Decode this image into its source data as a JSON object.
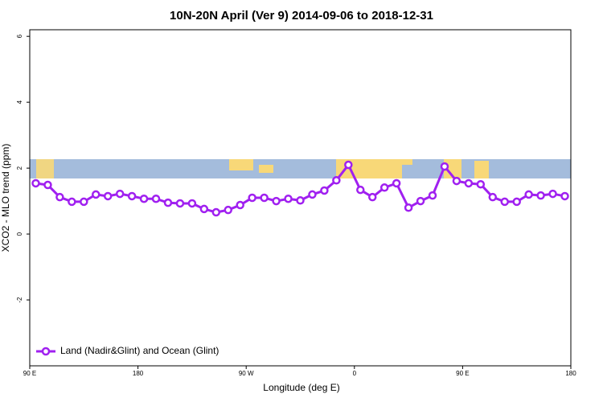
{
  "chart_data": {
    "type": "line",
    "title": "10N-20N April (Ver 9)   2014-09-06 to 2018-12-31",
    "x_label": "Longitude (deg E)",
    "y_label": "XCO2 - MLO trend (ppm)",
    "x": [
      95,
      105,
      115,
      125,
      135,
      145,
      155,
      165,
      175,
      185,
      195,
      205,
      215,
      225,
      235,
      245,
      255,
      265,
      275,
      285,
      295,
      305,
      315,
      325,
      335,
      345,
      355,
      365,
      375,
      385,
      395,
      405,
      415,
      425,
      435,
      445,
      455,
      465,
      475,
      485,
      495,
      505,
      515,
      525,
      535
    ],
    "series": [
      {
        "name": "Land (Nadir&Glint) and Ocean (Glint)",
        "color": "#a020f0",
        "values": [
          1.54,
          1.49,
          1.12,
          0.98,
          0.98,
          1.2,
          1.15,
          1.22,
          1.15,
          1.07,
          1.07,
          0.95,
          0.93,
          0.93,
          0.76,
          0.66,
          0.73,
          0.88,
          1.1,
          1.1,
          1.0,
          1.07,
          1.02,
          1.2,
          1.32,
          1.63,
          2.1,
          1.34,
          1.12,
          1.41,
          1.54,
          0.8,
          1.0,
          1.17,
          2.05,
          1.61,
          1.54,
          1.51,
          1.12,
          0.98,
          0.98,
          1.2,
          1.17,
          1.22,
          1.15
        ]
      }
    ],
    "xlim": [
      90,
      540
    ],
    "xticks": [
      {
        "value": 90,
        "label": "90 E"
      },
      180,
      {
        "value": 270,
        "label": "90 W"
      },
      {
        "value": 360,
        "label": "0"
      },
      {
        "value": 450,
        "label": "90 E"
      },
      {
        "value": 540,
        "label": "180"
      }
    ],
    "ylim": [
      -4,
      6.2
    ],
    "yticks": [
      -2,
      0,
      2,
      4,
      6
    ],
    "legend": "bottom-left"
  }
}
